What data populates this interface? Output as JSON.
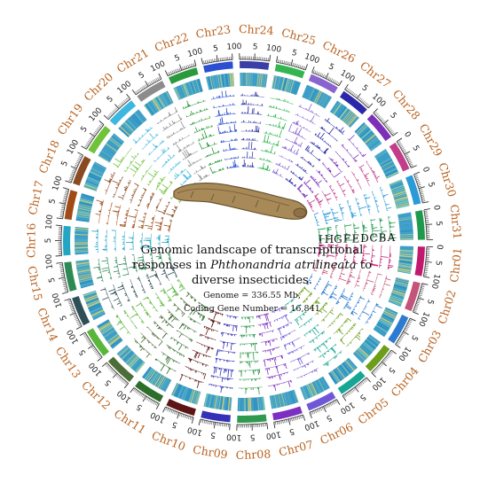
{
  "figure": {
    "title_lines": [
      [
        "Genomic landscape of transcriptional"
      ],
      [
        "responses in ",
        "Phthonandria atrilineata",
        " to"
      ],
      [
        "diverse insecticides."
      ]
    ],
    "genome_size_text": "Genome = 336.55 Mb,",
    "gene_number_text": "Coding Gene Number = 16,841",
    "track_letters": [
      "A",
      "B",
      "C",
      "D",
      "E",
      "F",
      "G",
      "H",
      "I"
    ],
    "central_image": "insect-larva"
  },
  "chromosomes": [
    {
      "name": "Chr01",
      "color": "#c2186e",
      "ticks": [
        "0",
        "5",
        "10"
      ]
    },
    {
      "name": "Chr02",
      "color": "#c3547a",
      "ticks": [
        "0",
        "5",
        "10"
      ]
    },
    {
      "name": "Chr03",
      "color": "#2c7bd0",
      "ticks": [
        "0",
        "5",
        "10"
      ]
    },
    {
      "name": "Chr04",
      "color": "#6c9e1a",
      "ticks": [
        "0",
        "5",
        "10"
      ]
    },
    {
      "name": "Chr05",
      "color": "#16a794",
      "ticks": [
        "0",
        "5",
        "10"
      ]
    },
    {
      "name": "Chr06",
      "color": "#6f57d8",
      "ticks": [
        "0",
        "5",
        "10"
      ]
    },
    {
      "name": "Chr07",
      "color": "#7c2fc0",
      "ticks": [
        "0",
        "5",
        "10"
      ]
    },
    {
      "name": "Chr08",
      "color": "#2f9a4f",
      "ticks": [
        "0",
        "5",
        "10"
      ]
    },
    {
      "name": "Chr09",
      "color": "#3431b8",
      "ticks": [
        "0",
        "5",
        "10"
      ]
    },
    {
      "name": "Chr10",
      "color": "#5c1414",
      "ticks": [
        "0",
        "5",
        "10"
      ]
    },
    {
      "name": "Chr11",
      "color": "#2e6e2b",
      "ticks": [
        "0",
        "5",
        "10"
      ]
    },
    {
      "name": "Chr12",
      "color": "#4c6e36",
      "ticks": [
        "0",
        "5",
        "10"
      ]
    },
    {
      "name": "Chr13",
      "color": "#58b63a",
      "ticks": [
        "0",
        "5",
        "10"
      ]
    },
    {
      "name": "Chr14",
      "color": "#2f4f58",
      "ticks": [
        "0",
        "5",
        "10"
      ]
    },
    {
      "name": "Chr15",
      "color": "#2e8a55",
      "ticks": [
        "0",
        "5",
        "10"
      ]
    },
    {
      "name": "Chr16",
      "color": "#23a6c4",
      "ticks": [
        "0",
        "5",
        "10"
      ]
    },
    {
      "name": "Chr17",
      "color": "#a04a16",
      "ticks": [
        "0",
        "5",
        "10"
      ]
    },
    {
      "name": "Chr18",
      "color": "#8a4a22",
      "ticks": [
        "0",
        "5",
        "10"
      ]
    },
    {
      "name": "Chr19",
      "color": "#6fc23a",
      "ticks": [
        "0",
        "5",
        "10"
      ]
    },
    {
      "name": "Chr20",
      "color": "#3bb7e0",
      "ticks": [
        "0",
        "5",
        "10"
      ]
    },
    {
      "name": "Chr21",
      "color": "#8c8c8c",
      "ticks": [
        "0",
        "5",
        "10"
      ]
    },
    {
      "name": "Chr22",
      "color": "#2a9a3c",
      "ticks": [
        "0",
        "5",
        "10"
      ]
    },
    {
      "name": "Chr23",
      "color": "#2c4fd0",
      "ticks": [
        "0",
        "5",
        "10"
      ]
    },
    {
      "name": "Chr24",
      "color": "#3a3fa8",
      "ticks": [
        "0",
        "5",
        "10"
      ]
    },
    {
      "name": "Chr25",
      "color": "#33b551",
      "ticks": [
        "0",
        "5",
        "10"
      ]
    },
    {
      "name": "Chr26",
      "color": "#8a63cf",
      "ticks": [
        "0",
        "5",
        "10"
      ]
    },
    {
      "name": "Chr27",
      "color": "#2a28a8",
      "ticks": [
        "0",
        "5",
        "10"
      ]
    },
    {
      "name": "Chr28",
      "color": "#7c30b8",
      "ticks": [
        "0",
        "5"
      ]
    },
    {
      "name": "Chr29",
      "color": "#c23c8a",
      "ticks": [
        "0",
        "5"
      ]
    },
    {
      "name": "Chr30",
      "color": "#2a9ad8",
      "ticks": [
        "0",
        "5"
      ]
    },
    {
      "name": "Chr31",
      "color": "#1f9a4c",
      "ticks": [
        "0",
        "5"
      ]
    }
  ],
  "heatmap_palette": [
    "#2a8ec2",
    "#3aa0c8",
    "#5ab4c8",
    "#7cc6b4",
    "#a8d49a",
    "#d8d070",
    "#9fc7a0",
    "#46a3cc"
  ]
}
